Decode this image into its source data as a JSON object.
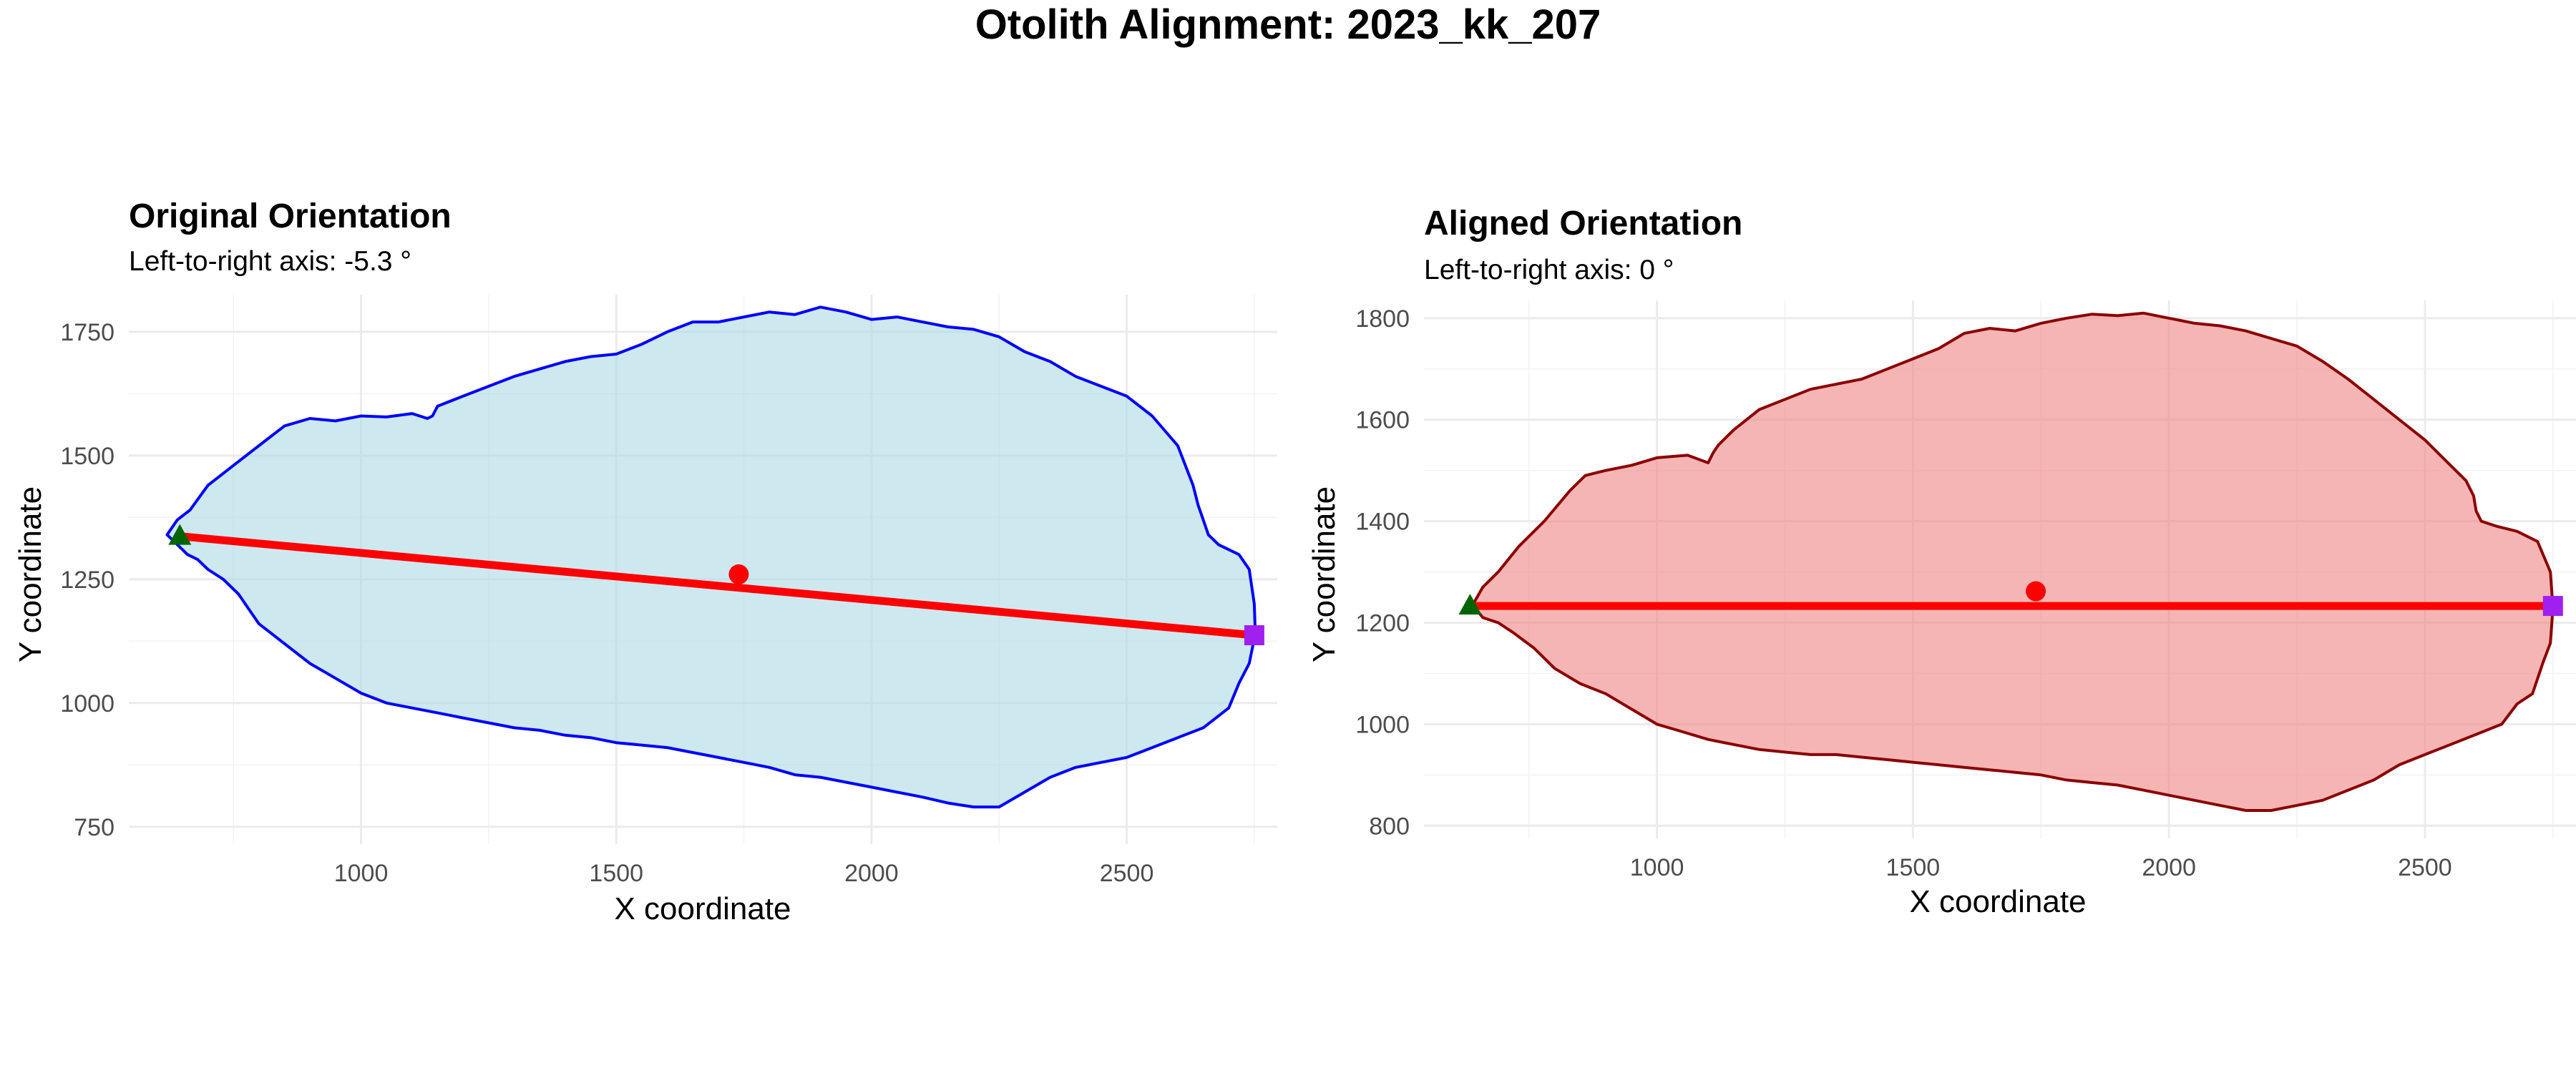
{
  "title": "Otolith Alignment: 2023_kk_207",
  "chart_data": [
    {
      "type": "area",
      "title": "Original Orientation",
      "subtitle": "Left-to-right axis: -5.3 °",
      "xlabel": "X coordinate",
      "ylabel": "Y coordinate",
      "xlim": [
        545,
        2795
      ],
      "ylim": [
        715,
        1825
      ],
      "xticks": [
        1000,
        1500,
        2000,
        2500
      ],
      "yticks": [
        750,
        1000,
        1250,
        1500,
        1750
      ],
      "xtick_labels": [
        "1000",
        "1500",
        "2000",
        "2500"
      ],
      "ytick_labels": [
        "750",
        "1000",
        "1250",
        "1500",
        "1750"
      ],
      "grid": true,
      "fill_color": "#add8e6",
      "line_color": "#0000ff",
      "outline": {
        "x": [
          620,
          640,
          665,
          700,
          750,
          800,
          850,
          900,
          950,
          1000,
          1050,
          1100,
          1130,
          1140,
          1150,
          1200,
          1250,
          1300,
          1350,
          1400,
          1450,
          1500,
          1550,
          1600,
          1650,
          1700,
          1750,
          1800,
          1850,
          1900,
          1950,
          2000,
          2050,
          2100,
          2150,
          2200,
          2250,
          2300,
          2350,
          2400,
          2450,
          2500,
          2550,
          2600,
          2630,
          2640,
          2650,
          2660,
          2680,
          2720,
          2740,
          2750,
          2752,
          2740,
          2720,
          2700,
          2650,
          2600,
          2550,
          2500,
          2450,
          2400,
          2350,
          2300,
          2250,
          2200,
          2150,
          2100,
          2050,
          2000,
          1950,
          1900,
          1850,
          1800,
          1750,
          1700,
          1650,
          1600,
          1550,
          1500,
          1450,
          1400,
          1350,
          1300,
          1250,
          1200,
          1150,
          1100,
          1050,
          1000,
          950,
          900,
          850,
          800,
          780,
          760,
          730,
          700,
          680,
          660,
          640,
          620
        ],
        "y": [
          1340,
          1370,
          1390,
          1440,
          1480,
          1520,
          1560,
          1575,
          1570,
          1580,
          1578,
          1585,
          1575,
          1580,
          1600,
          1620,
          1640,
          1660,
          1675,
          1690,
          1700,
          1705,
          1725,
          1750,
          1770,
          1770,
          1780,
          1790,
          1785,
          1800,
          1790,
          1775,
          1780,
          1770,
          1760,
          1755,
          1740,
          1710,
          1690,
          1660,
          1640,
          1620,
          1580,
          1520,
          1440,
          1400,
          1370,
          1340,
          1320,
          1300,
          1270,
          1200,
          1140,
          1080,
          1040,
          990,
          950,
          930,
          910,
          890,
          880,
          870,
          850,
          820,
          790,
          790,
          798,
          810,
          820,
          830,
          840,
          850,
          855,
          870,
          880,
          890,
          900,
          910,
          915,
          920,
          930,
          935,
          945,
          950,
          960,
          970,
          980,
          990,
          1000,
          1020,
          1050,
          1080,
          1120,
          1160,
          1190,
          1220,
          1250,
          1270,
          1290,
          1300,
          1320,
          1340
        ]
      },
      "axis_line": {
        "x": [
          645,
          2750
        ],
        "y": [
          1337,
          1137
        ]
      },
      "left_point": {
        "x": 645,
        "y": 1337,
        "color": "#006400",
        "shape": "triangle"
      },
      "right_point": {
        "x": 2750,
        "y": 1137,
        "color": "#a020f0",
        "shape": "square"
      },
      "centroid": {
        "x": 1740,
        "y": 1260,
        "color": "#ff0000",
        "shape": "circle"
      }
    },
    {
      "type": "area",
      "title": "Aligned Orientation",
      "subtitle": "Left-to-right axis: 0 °",
      "xlabel": "X coordinate",
      "ylabel": "Y coordinate",
      "xlim": [
        545,
        2795
      ],
      "ylim": [
        775,
        1835
      ],
      "xticks": [
        1000,
        1500,
        2000,
        2500
      ],
      "yticks": [
        800,
        1000,
        1200,
        1400,
        1600,
        1800
      ],
      "xtick_labels": [
        "1000",
        "1500",
        "2000",
        "2500"
      ],
      "ytick_labels": [
        "800",
        "1000",
        "1200",
        "1400",
        "1600",
        "1800"
      ],
      "grid": true,
      "fill_color": "#f08080",
      "line_color": "#8b0000",
      "outline": {
        "x": [
          640,
          660,
          690,
          730,
          780,
          830,
          860,
          880,
          900,
          950,
          1000,
          1060,
          1100,
          1110,
          1120,
          1150,
          1200,
          1250,
          1300,
          1350,
          1400,
          1450,
          1500,
          1550,
          1600,
          1650,
          1700,
          1750,
          1800,
          1850,
          1900,
          1950,
          2000,
          2050,
          2100,
          2150,
          2200,
          2250,
          2300,
          2350,
          2400,
          2450,
          2500,
          2550,
          2580,
          2595,
          2600,
          2610,
          2640,
          2680,
          2720,
          2745,
          2750,
          2745,
          2730,
          2710,
          2680,
          2650,
          2600,
          2550,
          2500,
          2450,
          2400,
          2350,
          2300,
          2250,
          2200,
          2150,
          2100,
          2050,
          2000,
          1950,
          1900,
          1850,
          1800,
          1750,
          1700,
          1650,
          1600,
          1550,
          1500,
          1450,
          1400,
          1350,
          1300,
          1250,
          1200,
          1150,
          1100,
          1050,
          1000,
          950,
          900,
          850,
          800,
          760,
          720,
          690,
          660,
          640
        ],
        "y": [
          1235,
          1270,
          1300,
          1350,
          1400,
          1460,
          1490,
          1495,
          1500,
          1510,
          1525,
          1530,
          1515,
          1535,
          1550,
          1580,
          1620,
          1640,
          1660,
          1670,
          1680,
          1700,
          1720,
          1740,
          1770,
          1780,
          1775,
          1790,
          1800,
          1808,
          1805,
          1810,
          1800,
          1790,
          1785,
          1775,
          1760,
          1745,
          1715,
          1680,
          1640,
          1600,
          1560,
          1510,
          1480,
          1450,
          1420,
          1400,
          1390,
          1380,
          1360,
          1300,
          1230,
          1160,
          1120,
          1060,
          1040,
          1000,
          980,
          960,
          940,
          920,
          890,
          870,
          850,
          840,
          830,
          830,
          840,
          850,
          860,
          870,
          880,
          885,
          890,
          900,
          905,
          910,
          915,
          920,
          925,
          930,
          935,
          940,
          940,
          945,
          950,
          960,
          970,
          985,
          1000,
          1030,
          1060,
          1080,
          1110,
          1150,
          1180,
          1200,
          1210,
          1235
        ]
      },
      "axis_line": {
        "x": [
          635,
          2750
        ],
        "y": [
          1233,
          1233
        ]
      },
      "left_point": {
        "x": 635,
        "y": 1233,
        "color": "#006400",
        "shape": "triangle"
      },
      "right_point": {
        "x": 2750,
        "y": 1233,
        "color": "#a020f0",
        "shape": "square"
      },
      "centroid": {
        "x": 1740,
        "y": 1262,
        "color": "#ff0000",
        "shape": "circle"
      }
    }
  ]
}
